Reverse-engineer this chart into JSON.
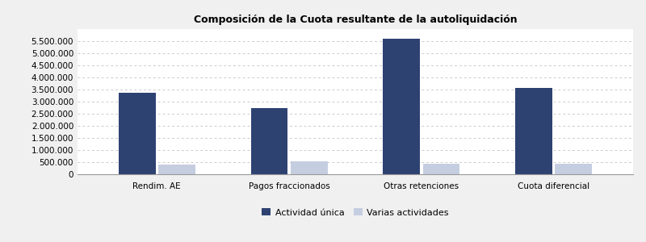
{
  "title": "Composición de la Cuota resultante de la autoliquidación",
  "categories": [
    "Rendim. AE",
    "Pagos fraccionados",
    "Otras retenciones",
    "Cuota diferencial"
  ],
  "series": [
    {
      "name": "Actividad única",
      "color": "#2e4272",
      "values": [
        3380000,
        2750000,
        5600000,
        3560000
      ]
    },
    {
      "name": "Varias actividades",
      "color": "#c5cde0",
      "values": [
        400000,
        530000,
        430000,
        420000
      ]
    }
  ],
  "ylim": [
    0,
    6000000
  ],
  "yticks": [
    0,
    500000,
    1000000,
    1500000,
    2000000,
    2500000,
    3000000,
    3500000,
    4000000,
    4500000,
    5000000,
    5500000
  ],
  "bar_width": 0.28,
  "background_color": "#f0f0f0",
  "plot_background": "#ffffff",
  "grid_color": "#cccccc",
  "title_fontsize": 9,
  "tick_fontsize": 7.5,
  "legend_fontsize": 8
}
